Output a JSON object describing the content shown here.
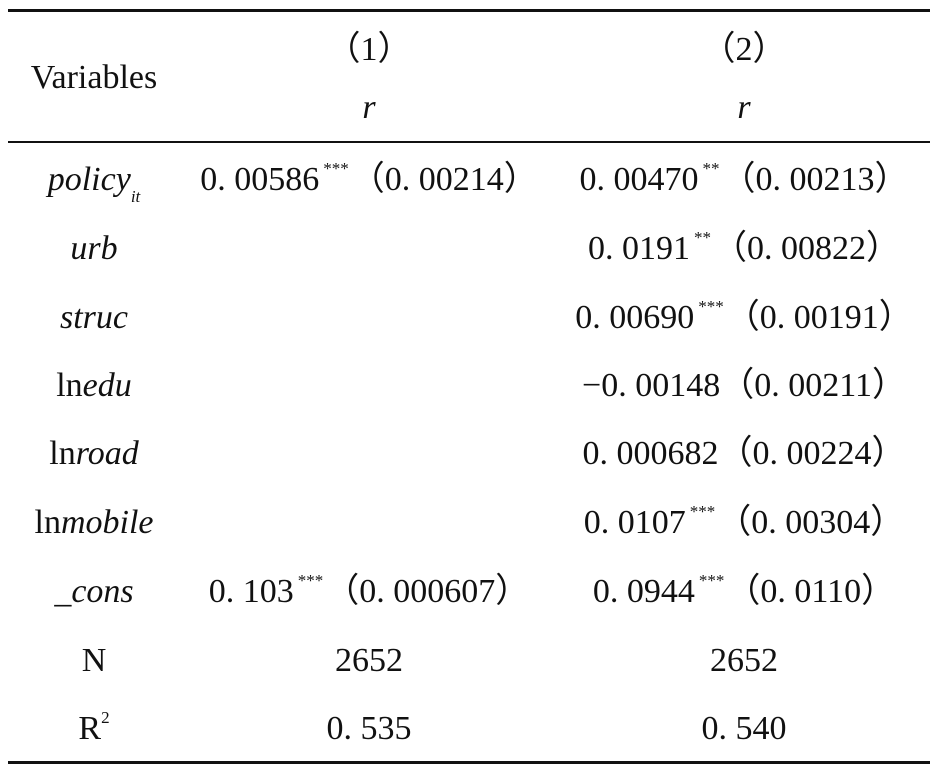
{
  "header": {
    "variables_label": "Variables",
    "col1_number": "（1）",
    "col1_dep": "r",
    "col2_number": "（2）",
    "col2_dep": "r"
  },
  "rows": [
    {
      "var_prefix": "",
      "var_name": "policy",
      "var_sub": "it",
      "c1_coef": "0. 00586",
      "c1_stars": "***",
      "c1_se": "（0. 00214）",
      "c2_coef": "0. 00470",
      "c2_stars": "**",
      "c2_se": "（0. 00213）"
    },
    {
      "var_prefix": "",
      "var_name": "urb",
      "var_sub": "",
      "c1_coef": "",
      "c1_stars": "",
      "c1_se": "",
      "c2_coef": "0. 0191",
      "c2_stars": "**",
      "c2_se": "（0. 00822）"
    },
    {
      "var_prefix": "",
      "var_name": "struc",
      "var_sub": "",
      "c1_coef": "",
      "c1_stars": "",
      "c1_se": "",
      "c2_coef": "0. 00690",
      "c2_stars": "***",
      "c2_se": "（0. 00191）"
    },
    {
      "var_prefix": "ln",
      "var_name": "edu",
      "var_sub": "",
      "c1_coef": "",
      "c1_stars": "",
      "c1_se": "",
      "c2_coef": "−0. 00148",
      "c2_stars": "",
      "c2_se": "（0. 00211）"
    },
    {
      "var_prefix": "ln",
      "var_name": "road",
      "var_sub": "",
      "c1_coef": "",
      "c1_stars": "",
      "c1_se": "",
      "c2_coef": "0. 000682",
      "c2_stars": "",
      "c2_se": "（0. 00224）"
    },
    {
      "var_prefix": "ln",
      "var_name": "mobile",
      "var_sub": "",
      "c1_coef": "",
      "c1_stars": "",
      "c1_se": "",
      "c2_coef": "0. 0107",
      "c2_stars": "***",
      "c2_se": "（0. 00304）"
    },
    {
      "var_prefix": "",
      "var_name": "_cons",
      "var_sub": "",
      "c1_coef": "0. 103",
      "c1_stars": "***",
      "c1_se": "（0. 000607）",
      "c2_coef": "0. 0944",
      "c2_stars": "***",
      "c2_se": "（0. 0110）"
    }
  ],
  "n_row": {
    "label": "N",
    "c1": "2652",
    "c2": "2652"
  },
  "r2_row": {
    "label": "R",
    "label_sup": "2",
    "c1": "0. 535",
    "c2": "0. 540"
  }
}
